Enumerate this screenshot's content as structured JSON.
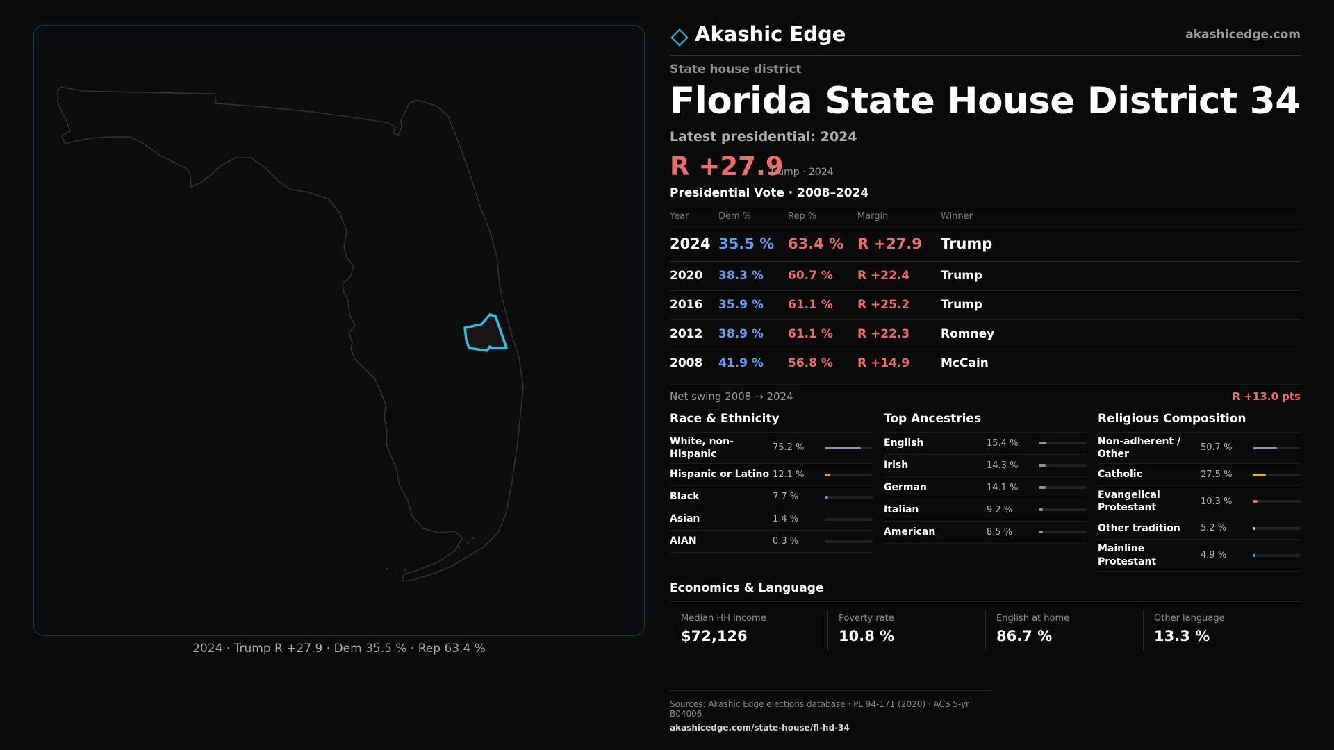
{
  "brand": {
    "name": "Akashic Edge",
    "site": "akashicedge.com",
    "accent": "#22c3e6"
  },
  "category": "State house district",
  "title": "Florida State House District 34",
  "latest_label": "Latest presidential: 2024",
  "hero": {
    "margin": "R +27.9",
    "sub": "Trump · 2024"
  },
  "vote_section_title": "Presidential Vote · 2008–2024",
  "vote_headers": {
    "year": "Year",
    "dem": "Dem %",
    "rep": "Rep %",
    "margin": "Margin",
    "winner": "Winner"
  },
  "vote_rows": [
    {
      "year": "2024",
      "dem": "35.5 %",
      "rep": "63.4 %",
      "margin": "R +27.9",
      "winner": "Trump"
    },
    {
      "year": "2020",
      "dem": "38.3 %",
      "rep": "60.7 %",
      "margin": "R +22.4",
      "winner": "Trump"
    },
    {
      "year": "2016",
      "dem": "35.9 %",
      "rep": "61.1 %",
      "margin": "R +25.2",
      "winner": "Trump"
    },
    {
      "year": "2012",
      "dem": "38.9 %",
      "rep": "61.1 %",
      "margin": "R +22.3",
      "winner": "Romney"
    },
    {
      "year": "2008",
      "dem": "41.9 %",
      "rep": "56.8 %",
      "margin": "R +14.9",
      "winner": "McCain"
    }
  ],
  "swing": {
    "label": "Net swing 2008 → 2024",
    "value": "R +13.0 pts"
  },
  "race": {
    "title": "Race & Ethnicity",
    "rows": [
      {
        "label": "White, non-Hispanic",
        "value": "75.2 %",
        "share": 0.752,
        "color": "#8e96a3"
      },
      {
        "label": "Hispanic or Latino",
        "value": "12.1 %",
        "share": 0.121,
        "color": "#e39a2d"
      },
      {
        "label": "Black",
        "value": "7.7 %",
        "share": 0.077,
        "color": "#8a86d8"
      },
      {
        "label": "Asian",
        "value": "1.4 %",
        "share": 0.014,
        "color": "#3fb37a"
      },
      {
        "label": "AIAN",
        "value": "0.3 %",
        "share": 0.003,
        "color": "#c08bd8"
      }
    ]
  },
  "ancestry": {
    "title": "Top Ancestries",
    "rows": [
      {
        "label": "English",
        "value": "15.4 %",
        "share": 0.154,
        "color": "#8e96a3"
      },
      {
        "label": "Irish",
        "value": "14.3 %",
        "share": 0.143,
        "color": "#8e96a3"
      },
      {
        "label": "German",
        "value": "14.1 %",
        "share": 0.141,
        "color": "#8e96a3"
      },
      {
        "label": "Italian",
        "value": "9.2 %",
        "share": 0.092,
        "color": "#8e96a3"
      },
      {
        "label": "American",
        "value": "8.5 %",
        "share": 0.085,
        "color": "#8e96a3"
      }
    ]
  },
  "religion": {
    "title": "Religious Composition",
    "rows": [
      {
        "label": "Non-adherent / Other",
        "value": "50.7 %",
        "share": 0.507,
        "color": "#8e96a3"
      },
      {
        "label": "Catholic",
        "value": "27.5 %",
        "share": 0.275,
        "color": "#e8b031"
      },
      {
        "label": "Evangelical Protestant",
        "value": "10.3 %",
        "share": 0.103,
        "color": "#ef6b67"
      },
      {
        "label": "Other tradition",
        "value": "5.2 %",
        "share": 0.052,
        "color": "#c9c9c9"
      },
      {
        "label": "Mainline Protestant",
        "value": "4.9 %",
        "share": 0.049,
        "color": "#5fa0f7"
      }
    ]
  },
  "economics": {
    "title": "Economics & Language",
    "cells": [
      {
        "label": "Median HH income",
        "value": "$72,126"
      },
      {
        "label": "Poverty rate",
        "value": "10.8 %"
      },
      {
        "label": "English at home",
        "value": "86.7 %"
      },
      {
        "label": "Other language",
        "value": "13.3 %"
      }
    ]
  },
  "map_caption": "2024 · Trump R +27.9 · Dem 35.5 % · Rep 63.4 %",
  "footer": {
    "sources": "Sources: Akashic Edge elections database · PL 94-171 (2020) · ACS 5-yr B04006",
    "url": "akashicedge.com/state-house/fl-hd-34"
  }
}
